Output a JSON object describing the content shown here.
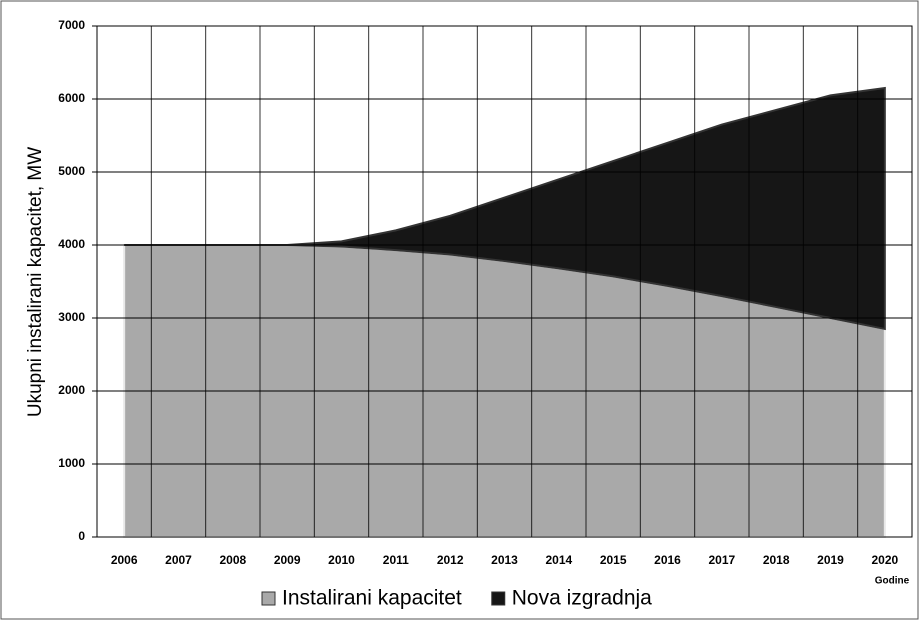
{
  "chart_data": {
    "type": "area",
    "stacked": true,
    "y_label": "Ukupni instalirani kapacitet, MW",
    "x_label": "Godine",
    "categories": [
      "2006",
      "2007",
      "2008",
      "2009",
      "2010",
      "2011",
      "2012",
      "2013",
      "2014",
      "2015",
      "2016",
      "2017",
      "2018",
      "2019",
      "2020"
    ],
    "series": [
      {
        "name": "Instalirani kapacitet",
        "color": "#a9a9a9",
        "values": [
          4000,
          4000,
          4000,
          4000,
          3980,
          3930,
          3870,
          3780,
          3680,
          3570,
          3440,
          3300,
          3150,
          3000,
          2850
        ]
      },
      {
        "name": "Nova izgradnja",
        "color": "#161616",
        "values": [
          0,
          0,
          0,
          0,
          70,
          270,
          530,
          870,
          1220,
          1580,
          1960,
          2350,
          2700,
          3050,
          3300
        ]
      }
    ],
    "ylim": [
      0,
      7000
    ],
    "yticks": [
      0,
      1000,
      2000,
      3000,
      4000,
      5000,
      6000,
      7000
    ],
    "grid": true,
    "legend": "bottom"
  }
}
